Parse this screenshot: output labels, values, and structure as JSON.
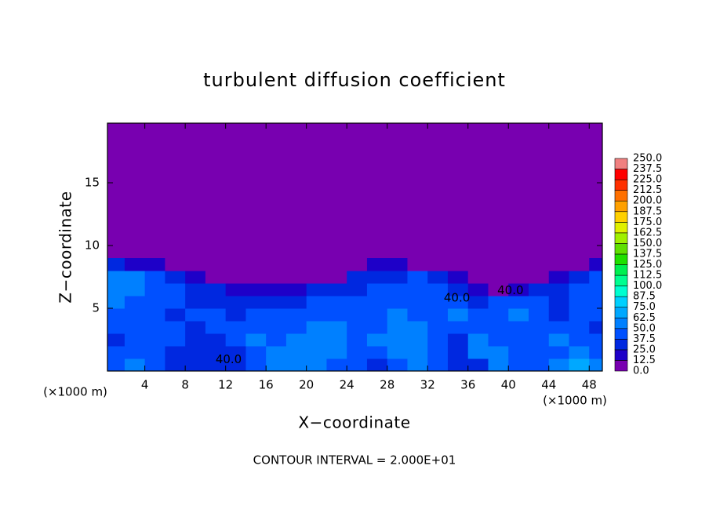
{
  "chart_data": {
    "type": "contour",
    "title": "turbulent diffusion coefficient",
    "x_label": "X−coordinate",
    "y_label": "Z−coordinate",
    "x_unit_left": "(×1000 m)",
    "x_unit_right": "(×1000 m)",
    "footer": "CONTOUR INTERVAL = 2.000E+01",
    "xlim": [
      0.3,
      49.3
    ],
    "ylim": [
      0,
      19.75
    ],
    "xticks": [
      4,
      8,
      12,
      16,
      20,
      24,
      28,
      32,
      36,
      40,
      44,
      48
    ],
    "yticks": [
      5,
      10,
      15
    ],
    "field": {
      "x": [
        1,
        3,
        5,
        7,
        9,
        11,
        13,
        15,
        17,
        19,
        21,
        23,
        25,
        27,
        29,
        31,
        33,
        35,
        37,
        39,
        41,
        43,
        45,
        47,
        49
      ],
      "z": [
        0.5,
        1.5,
        2.5,
        3.5,
        4.5,
        5.5,
        6.5,
        7.5,
        8.5
      ],
      "values": [
        [
          45,
          50,
          40,
          35,
          35,
          30,
          30,
          40,
          55,
          60,
          55,
          45,
          40,
          35,
          45,
          60,
          40,
          35,
          30,
          50,
          45,
          40,
          60,
          70,
          55
        ],
        [
          40,
          45,
          40,
          35,
          30,
          30,
          35,
          45,
          60,
          50,
          55,
          50,
          40,
          45,
          55,
          60,
          40,
          35,
          50,
          55,
          45,
          40,
          45,
          55,
          45
        ],
        [
          35,
          40,
          45,
          40,
          35,
          35,
          40,
          50,
          45,
          50,
          55,
          55,
          45,
          50,
          60,
          55,
          40,
          35,
          50,
          45,
          40,
          45,
          50,
          45,
          40
        ],
        [
          40,
          45,
          40,
          40,
          35,
          40,
          40,
          45,
          40,
          45,
          50,
          50,
          45,
          45,
          55,
          50,
          45,
          40,
          45,
          40,
          45,
          40,
          40,
          40,
          35
        ],
        [
          45,
          40,
          40,
          35,
          40,
          40,
          35,
          40,
          40,
          40,
          45,
          45,
          40,
          45,
          50,
          45,
          45,
          50,
          40,
          45,
          50,
          40,
          35,
          40,
          40
        ],
        [
          50,
          45,
          40,
          40,
          35,
          35,
          35,
          35,
          35,
          35,
          40,
          40,
          40,
          40,
          45,
          45,
          45,
          45,
          30,
          40,
          45,
          45,
          35,
          40,
          45
        ],
        [
          55,
          50,
          45,
          40,
          30,
          25,
          20,
          20,
          15,
          20,
          25,
          30,
          35,
          40,
          40,
          45,
          40,
          35,
          15,
          10,
          15,
          25,
          30,
          40,
          45
        ],
        [
          50,
          55,
          45,
          35,
          20,
          5,
          5,
          5,
          5,
          5,
          5,
          10,
          25,
          35,
          35,
          40,
          35,
          20,
          5,
          5,
          5,
          10,
          20,
          35,
          45
        ],
        [
          25,
          20,
          15,
          10,
          5,
          0,
          0,
          0,
          0,
          0,
          0,
          0,
          5,
          15,
          15,
          10,
          5,
          5,
          0,
          0,
          0,
          0,
          5,
          10,
          20
        ]
      ]
    },
    "contour_labels": [
      {
        "text": "40.0",
        "x": 12.3,
        "y": 0.9
      },
      {
        "text": "40.0",
        "x": 34.9,
        "y": 5.8
      },
      {
        "text": "40.0",
        "x": 40.2,
        "y": 6.4
      }
    ],
    "colorbar": {
      "levels": [
        {
          "value": 0,
          "label": "0.0"
        },
        {
          "value": 12.5,
          "label": "12.5"
        },
        {
          "value": 25,
          "label": "25.0"
        },
        {
          "value": 37.5,
          "label": "37.5"
        },
        {
          "value": 50,
          "label": "50.0"
        },
        {
          "value": 62.5,
          "label": "62.5"
        },
        {
          "value": 75,
          "label": "75.0"
        },
        {
          "value": 87.5,
          "label": "87.5"
        },
        {
          "value": 100,
          "label": "100.0"
        },
        {
          "value": 112.5,
          "label": "112.5"
        },
        {
          "value": 125,
          "label": "125.0"
        },
        {
          "value": 137.5,
          "label": "137.5"
        },
        {
          "value": 150,
          "label": "150.0"
        },
        {
          "value": 162.5,
          "label": "162.5"
        },
        {
          "value": 175,
          "label": "175.0"
        },
        {
          "value": 187.5,
          "label": "187.5"
        },
        {
          "value": 200,
          "label": "200.0"
        },
        {
          "value": 212.5,
          "label": "212.5"
        },
        {
          "value": 225,
          "label": "225.0"
        },
        {
          "value": 237.5,
          "label": "237.5"
        },
        {
          "value": 250,
          "label": "250.0"
        }
      ],
      "colors": [
        "#7800b0",
        "#1e00c8",
        "#0028e0",
        "#0050ff",
        "#0080ff",
        "#00a8ff",
        "#00d0ff",
        "#00ffd0",
        "#00ff90",
        "#00f050",
        "#20e000",
        "#60e000",
        "#a0f000",
        "#e0f000",
        "#ffd000",
        "#ffa000",
        "#ff7000",
        "#ff3000",
        "#ff0000",
        "#f08080"
      ]
    }
  }
}
